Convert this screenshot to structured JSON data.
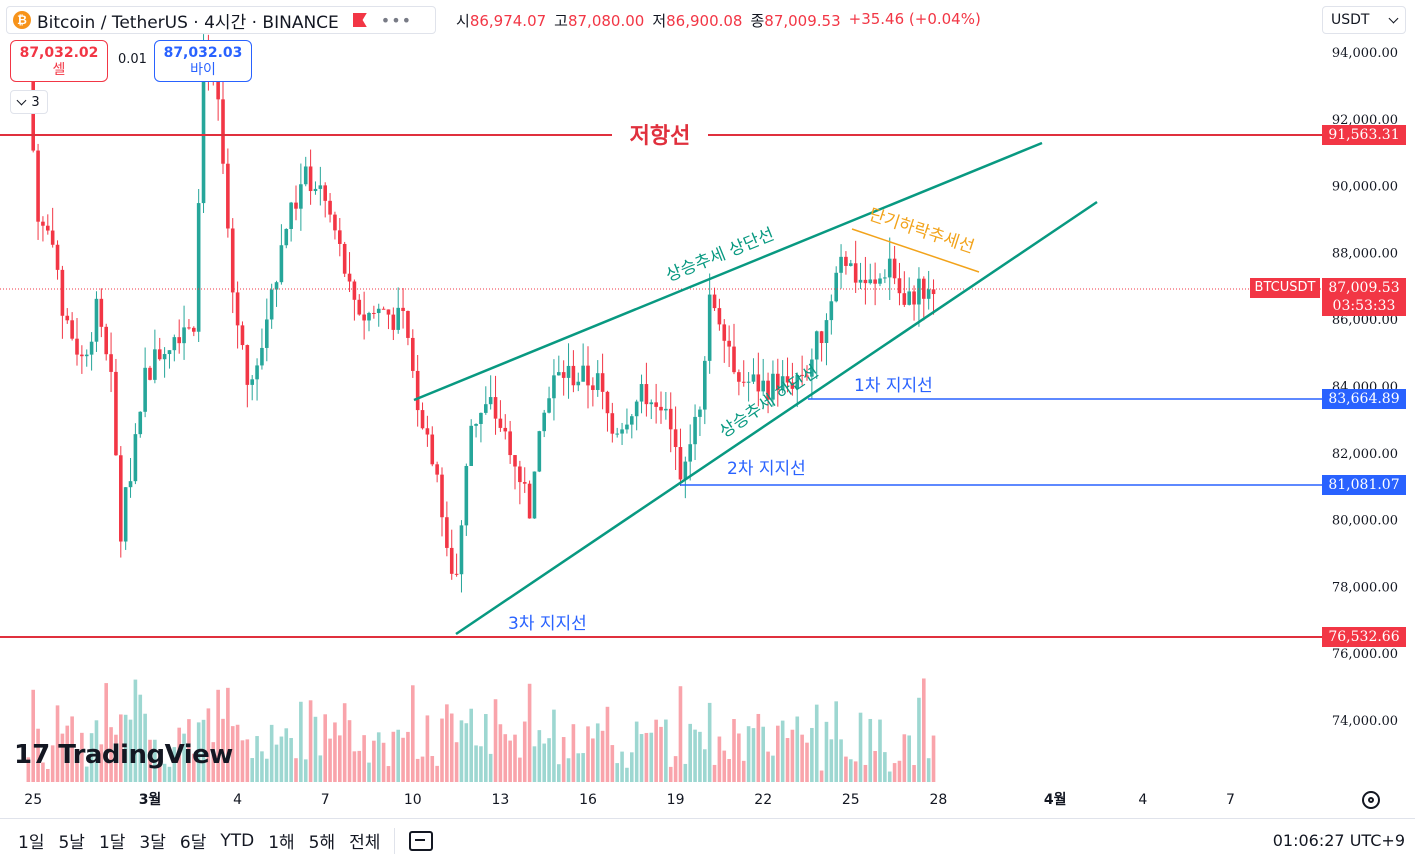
{
  "header": {
    "symbol_title": "Bitcoin / TetherUS · 4시간 · BINANCE",
    "btc_icon": "₿",
    "ohlc": {
      "open_label": "시",
      "open": "86,974.07",
      "high_label": "고",
      "high": "87,080.00",
      "low_label": "저",
      "low": "86,900.08",
      "close_label": "종",
      "close": "87,009.53",
      "change": "+35.46 (+0.04%)"
    },
    "currency": "USDT"
  },
  "trade": {
    "sell_price": "87,032.02",
    "sell_label": "셀",
    "buy_price": "87,032.03",
    "buy_label": "바이",
    "spread": "0.01",
    "indicator_count": "3"
  },
  "price_axis": {
    "ticks": [
      "94,000.00",
      "92,000.00",
      "90,000.00",
      "88,000.00",
      "86,000.00",
      "84,000.00",
      "82,000.00",
      "80,000.00",
      "78,000.00",
      "76,000.00",
      "74,000.00"
    ],
    "resistance_badge": "91,563.31",
    "support1_badge": "83,664.89",
    "support2_badge": "81,081.07",
    "support3_badge": "76,532.66",
    "current_symbol": "BTCUSDT",
    "current_price": "87,009.53",
    "countdown": "03:53:33"
  },
  "time_axis": {
    "labels": [
      "25",
      "3월",
      "4",
      "7",
      "10",
      "13",
      "16",
      "19",
      "22",
      "25",
      "28",
      "4월",
      "4",
      "7"
    ]
  },
  "annotations": {
    "resistance": "저항선",
    "uptrend_upper": "상승추세 상단선",
    "uptrend_lower": "상승추세 하단선",
    "short_downtrend": "단기하락추세선",
    "support1": "1차 지지선",
    "support2": "2차 지지선",
    "support3": "3차 지지선"
  },
  "colors": {
    "up": "#26a69a",
    "down": "#f23645",
    "trend": "#089981",
    "support": "#2962ff",
    "resistance": "#e0303d",
    "short_trend": "#f2a31b"
  },
  "logo": "TradingView",
  "bottom_bar": {
    "ranges": [
      "1일",
      "5날",
      "1달",
      "3달",
      "6달",
      "YTD",
      "1해",
      "5해",
      "전체"
    ],
    "clock": "01:06:27 UTC+9"
  },
  "chart_data": {
    "type": "candlestick",
    "interval": "4시간",
    "ylim": [
      72600,
      95500
    ],
    "resistance": 91563.31,
    "supports": [
      83664.89,
      81081.07,
      76532.66
    ],
    "current": 87009.53,
    "anchors": [
      [
        "2/24 20:00",
        93200
      ],
      [
        "2/25 04:00",
        89000
      ],
      [
        "2/25 12:00",
        88600
      ],
      [
        "2/26 00:00",
        86300
      ],
      [
        "2/26 16:00",
        84800
      ],
      [
        "2/27 04:00",
        86200
      ],
      [
        "2/27 16:00",
        84000
      ],
      [
        "2/28 00:00",
        79600
      ],
      [
        "2/28 20:00",
        84400
      ],
      [
        "3/1 12:00",
        85200
      ],
      [
        "3/2 04:00",
        85900
      ],
      [
        "3/2 12:00",
        86000
      ],
      [
        "3/2 20:00",
        93800
      ],
      [
        "3/3 08:00",
        92400
      ],
      [
        "3/3 20:00",
        86800
      ],
      [
        "3/4 08:00",
        84200
      ],
      [
        "3/4 16:00",
        84400
      ],
      [
        "3/5 04:00",
        86900
      ],
      [
        "3/5 16:00",
        88800
      ],
      [
        "3/6 08:00",
        90300
      ],
      [
        "3/6 20:00",
        89900
      ],
      [
        "3/7 08:00",
        88600
      ],
      [
        "3/7 20:00",
        86900
      ],
      [
        "3/8 08:00",
        86100
      ],
      [
        "3/9 00:00",
        86300
      ],
      [
        "3/9 16:00",
        85800
      ],
      [
        "3/10 04:00",
        83600
      ],
      [
        "3/10 20:00",
        81500
      ],
      [
        "3/11 04:00",
        78800
      ],
      [
        "3/11 12:00",
        78400
      ],
      [
        "3/12 00:00",
        82900
      ],
      [
        "3/12 16:00",
        83400
      ],
      [
        "3/13 08:00",
        82300
      ],
      [
        "3/14 00:00",
        80400
      ],
      [
        "3/14 16:00",
        84000
      ],
      [
        "3/15 04:00",
        84400
      ],
      [
        "3/16 08:00",
        84100
      ],
      [
        "3/16 20:00",
        82600
      ],
      [
        "3/17 12:00",
        83400
      ],
      [
        "3/18 04:00",
        83900
      ],
      [
        "3/18 12:00",
        83400
      ],
      [
        "3/19 04:00",
        81600
      ],
      [
        "3/19 20:00",
        83600
      ],
      [
        "3/20 04:00",
        86800
      ],
      [
        "3/20 16:00",
        85800
      ],
      [
        "3/21 04:00",
        84200
      ],
      [
        "3/22 00:00",
        84000
      ],
      [
        "3/22 20:00",
        84100
      ],
      [
        "3/23 12:00",
        84500
      ],
      [
        "3/24 04:00",
        86000
      ],
      [
        "3/24 16:00",
        88100
      ],
      [
        "3/25 04:00",
        87300
      ],
      [
        "3/25 20:00",
        86900
      ],
      [
        "3/26 08:00",
        87800
      ],
      [
        "3/26 20:00",
        86300
      ],
      [
        "3/27 08:00",
        87000
      ],
      [
        "3/27 20:00",
        87000
      ]
    ]
  }
}
